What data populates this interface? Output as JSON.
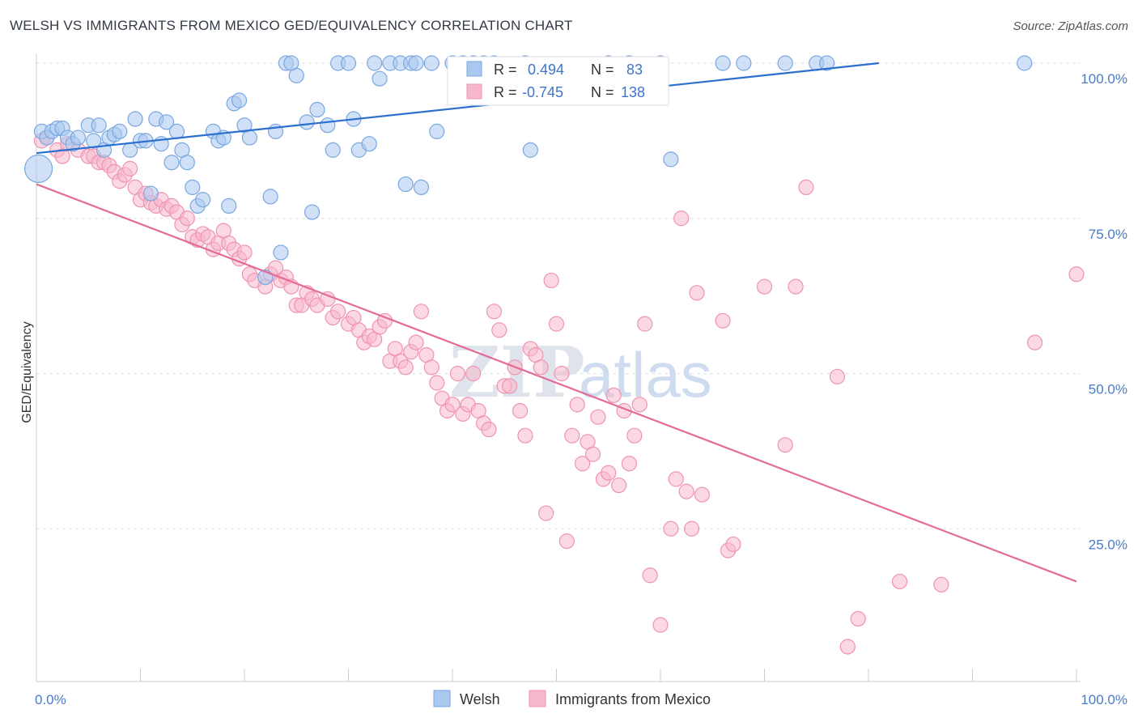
{
  "title": "WELSH VS IMMIGRANTS FROM MEXICO GED/EQUIVALENCY CORRELATION CHART",
  "source": "Source: ZipAtlas.com",
  "watermark": {
    "zip": "ZIP",
    "atlas": "atlas"
  },
  "legend": {
    "welsh": {
      "r_label": "R =",
      "r_value": "0.494",
      "n_label": "N =",
      "n_value": "83"
    },
    "mexico": {
      "r_label": "R =",
      "r_value": "-0.745",
      "n_label": "N =",
      "n_value": "138"
    }
  },
  "colors": {
    "welsh_fill": "#a9c8f0",
    "welsh_stroke": "#7aa7e0",
    "welsh_line": "#2b6fcf",
    "mexico_fill": "#f7b8cc",
    "mexico_stroke": "#ee94b1",
    "mexico_line": "#e46b98",
    "grid": "#dde1e8",
    "tick_text": "#4a7bc8"
  },
  "chart_data": {
    "type": "scatter",
    "title": "WELSH VS IMMIGRANTS FROM MEXICO GED/EQUIVALENCY CORRELATION CHART",
    "xlabel": "",
    "ylabel": "GED/Equivalency",
    "xlim": [
      0,
      100
    ],
    "ylim": [
      0,
      100
    ],
    "x_ticks": [
      "0.0%",
      "100.0%"
    ],
    "y_ticks": [
      "100.0%",
      "75.0%",
      "50.0%",
      "25.0%"
    ],
    "y_tick_values": [
      100,
      75,
      50,
      25
    ],
    "grid": true,
    "legend_placement": "top-center",
    "series": [
      {
        "name": "Welsh",
        "trend": {
          "x": [
            0,
            81
          ],
          "y": [
            85.5,
            100
          ]
        },
        "points": [
          [
            0.2,
            83
          ],
          [
            0.5,
            89
          ],
          [
            1,
            88
          ],
          [
            1.5,
            89
          ],
          [
            2,
            89.5
          ],
          [
            2.5,
            89.5
          ],
          [
            3,
            88
          ],
          [
            3.5,
            87
          ],
          [
            4,
            88
          ],
          [
            5,
            90
          ],
          [
            5.5,
            87.5
          ],
          [
            6,
            90
          ],
          [
            6.5,
            86
          ],
          [
            7,
            88
          ],
          [
            7.5,
            88.5
          ],
          [
            8,
            89
          ],
          [
            9,
            86
          ],
          [
            9.5,
            91
          ],
          [
            10,
            87.5
          ],
          [
            10.5,
            87.5
          ],
          [
            11,
            79
          ],
          [
            11.5,
            91
          ],
          [
            12,
            87
          ],
          [
            12.5,
            90.5
          ],
          [
            13,
            84
          ],
          [
            13.5,
            89
          ],
          [
            14,
            86
          ],
          [
            14.5,
            84
          ],
          [
            15,
            80
          ],
          [
            15.5,
            77
          ],
          [
            16,
            78
          ],
          [
            17,
            89
          ],
          [
            17.5,
            87.5
          ],
          [
            18,
            88
          ],
          [
            18.5,
            77
          ],
          [
            19,
            93.5
          ],
          [
            19.5,
            94
          ],
          [
            20,
            90
          ],
          [
            20.5,
            88
          ],
          [
            22,
            65.5
          ],
          [
            22.5,
            78.5
          ],
          [
            23,
            89
          ],
          [
            23.5,
            69.5
          ],
          [
            24,
            100
          ],
          [
            24.5,
            100
          ],
          [
            25,
            98
          ],
          [
            26,
            90.5
          ],
          [
            26.5,
            76
          ],
          [
            27,
            92.5
          ],
          [
            28,
            90
          ],
          [
            28.5,
            86
          ],
          [
            29,
            100
          ],
          [
            30,
            100
          ],
          [
            30.5,
            91
          ],
          [
            31,
            86
          ],
          [
            32,
            87
          ],
          [
            32.5,
            100
          ],
          [
            33,
            97.5
          ],
          [
            34,
            100
          ],
          [
            35,
            100
          ],
          [
            35.5,
            80.5
          ],
          [
            36,
            100
          ],
          [
            36.5,
            100
          ],
          [
            37,
            80
          ],
          [
            38,
            100
          ],
          [
            38.5,
            89
          ],
          [
            40,
            100
          ],
          [
            41,
            100
          ],
          [
            42,
            100
          ],
          [
            43,
            100
          ],
          [
            44,
            100
          ],
          [
            47,
            100
          ],
          [
            47.5,
            86
          ],
          [
            55,
            100
          ],
          [
            57,
            100
          ],
          [
            60,
            100
          ],
          [
            61,
            84.5
          ],
          [
            66,
            100
          ],
          [
            68,
            100
          ],
          [
            72,
            100
          ],
          [
            75,
            100
          ],
          [
            76,
            100
          ],
          [
            95,
            100
          ]
        ]
      },
      {
        "name": "Immigrants from Mexico",
        "trend": {
          "x": [
            0,
            100
          ],
          "y": [
            80.5,
            16.5
          ]
        },
        "points": [
          [
            0.5,
            87.5
          ],
          [
            1,
            88
          ],
          [
            2,
            86
          ],
          [
            2.5,
            85
          ],
          [
            3,
            87
          ],
          [
            4,
            86
          ],
          [
            5,
            85
          ],
          [
            5.5,
            85
          ],
          [
            6,
            84
          ],
          [
            6.5,
            84
          ],
          [
            7,
            83.5
          ],
          [
            7.5,
            82.5
          ],
          [
            8,
            81
          ],
          [
            8.5,
            82
          ],
          [
            9,
            83
          ],
          [
            9.5,
            80
          ],
          [
            10,
            78
          ],
          [
            10.5,
            79
          ],
          [
            11,
            77.5
          ],
          [
            11.5,
            77
          ],
          [
            12,
            78
          ],
          [
            12.5,
            76.5
          ],
          [
            13,
            77
          ],
          [
            13.5,
            76
          ],
          [
            14,
            74
          ],
          [
            14.5,
            75
          ],
          [
            15,
            72
          ],
          [
            15.5,
            71.5
          ],
          [
            16,
            72.5
          ],
          [
            16.5,
            72
          ],
          [
            17,
            70
          ],
          [
            17.5,
            71
          ],
          [
            18,
            73
          ],
          [
            18.5,
            71
          ],
          [
            19,
            70
          ],
          [
            19.5,
            68.5
          ],
          [
            20,
            69.5
          ],
          [
            20.5,
            66
          ],
          [
            21,
            65
          ],
          [
            22,
            64
          ],
          [
            22.5,
            66
          ],
          [
            23,
            67
          ],
          [
            23.5,
            65
          ],
          [
            24,
            65.5
          ],
          [
            24.5,
            64
          ],
          [
            25,
            61
          ],
          [
            25.5,
            61
          ],
          [
            26,
            63
          ],
          [
            26.5,
            62
          ],
          [
            27,
            61
          ],
          [
            28,
            62
          ],
          [
            28.5,
            59
          ],
          [
            29,
            60
          ],
          [
            30,
            58
          ],
          [
            30.5,
            59
          ],
          [
            31,
            57
          ],
          [
            31.5,
            55
          ],
          [
            32,
            56
          ],
          [
            32.5,
            55.5
          ],
          [
            33,
            57.5
          ],
          [
            33.5,
            58.5
          ],
          [
            34,
            52
          ],
          [
            34.5,
            54
          ],
          [
            35,
            52
          ],
          [
            35.5,
            51
          ],
          [
            36,
            53.5
          ],
          [
            36.5,
            55
          ],
          [
            37,
            60
          ],
          [
            37.5,
            53
          ],
          [
            38,
            51
          ],
          [
            38.5,
            48.5
          ],
          [
            39,
            46
          ],
          [
            39.5,
            44
          ],
          [
            40,
            45
          ],
          [
            40.5,
            50
          ],
          [
            41,
            43.5
          ],
          [
            41.5,
            45
          ],
          [
            42,
            50
          ],
          [
            42.5,
            44
          ],
          [
            43,
            42
          ],
          [
            43.5,
            41
          ],
          [
            44,
            60
          ],
          [
            44.5,
            57
          ],
          [
            45,
            48
          ],
          [
            45.5,
            48
          ],
          [
            46,
            51
          ],
          [
            46.5,
            44
          ],
          [
            47,
            40
          ],
          [
            47.5,
            54
          ],
          [
            48,
            53
          ],
          [
            48.5,
            51
          ],
          [
            49,
            27.5
          ],
          [
            49.5,
            65
          ],
          [
            50,
            58
          ],
          [
            50.5,
            50
          ],
          [
            51,
            23
          ],
          [
            51.5,
            40
          ],
          [
            52,
            45
          ],
          [
            52.5,
            35.5
          ],
          [
            53,
            39
          ],
          [
            53.5,
            37
          ],
          [
            54,
            43
          ],
          [
            54.5,
            33
          ],
          [
            55,
            34
          ],
          [
            55.5,
            46.5
          ],
          [
            56,
            32
          ],
          [
            56.5,
            44
          ],
          [
            57,
            35.5
          ],
          [
            57.5,
            40
          ],
          [
            58,
            45
          ],
          [
            58.5,
            58
          ],
          [
            59,
            17.5
          ],
          [
            60,
            9.5
          ],
          [
            61,
            25
          ],
          [
            61.5,
            33
          ],
          [
            62,
            75
          ],
          [
            62.5,
            31
          ],
          [
            63,
            25
          ],
          [
            63.5,
            63
          ],
          [
            64,
            30.5
          ],
          [
            66,
            58.5
          ],
          [
            66.5,
            21.5
          ],
          [
            67,
            22.5
          ],
          [
            70,
            64
          ],
          [
            72,
            38.5
          ],
          [
            73,
            64
          ],
          [
            74,
            80
          ],
          [
            77,
            49.5
          ],
          [
            78,
            6
          ],
          [
            79,
            10.5
          ],
          [
            83,
            16.5
          ],
          [
            87,
            16
          ],
          [
            96,
            55
          ],
          [
            100,
            66
          ]
        ]
      }
    ]
  },
  "bottom_legend": [
    "Welsh",
    "Immigrants from Mexico"
  ]
}
